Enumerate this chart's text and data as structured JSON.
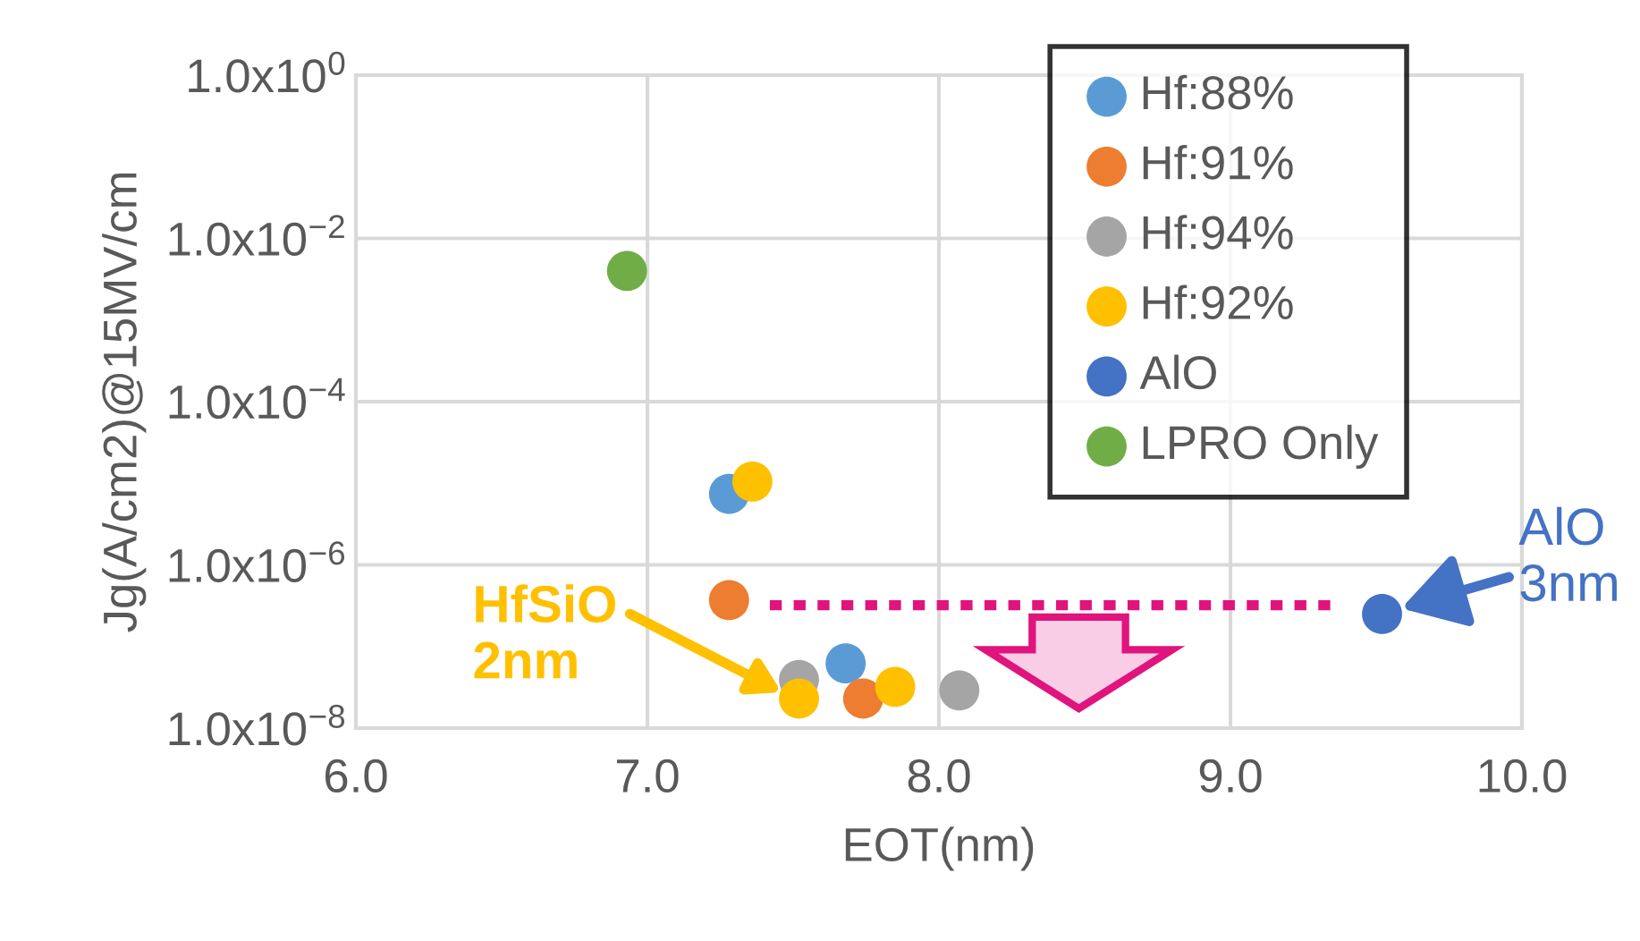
{
  "chart_data": {
    "type": "scatter",
    "xlabel": "EOT(nm)",
    "ylabel": "Jg(A/cm2)@15MV/cm",
    "log": "y",
    "xlim": [
      6.0,
      10.0
    ],
    "xticks": [
      {
        "value": 6,
        "label": "6.0"
      },
      {
        "value": 7,
        "label": "7.0"
      },
      {
        "value": 8,
        "label": "8.0"
      },
      {
        "value": 9,
        "label": "9.0"
      },
      {
        "value": 10,
        "label": "10.0"
      }
    ],
    "ylim": [
      1e-08,
      1
    ],
    "yticks": [
      {
        "value": 1,
        "label": "1.0x10$^{0}$"
      },
      {
        "value": 0.01,
        "label": "1.0x10$^{−2}$"
      },
      {
        "value": 0.0001,
        "label": "1.0x10$^{−4}$"
      },
      {
        "value": 1e-06,
        "label": "1.0x10$^{−6}$"
      },
      {
        "value": 1e-08,
        "label": "1.0x10$^{−8}$"
      }
    ],
    "grid": true,
    "legend": "top right",
    "marker": "circle",
    "series": [
      {
        "name": "Hf:88%",
        "color": "#5b9bd5",
        "x": [
          7.28,
          7.68
        ],
        "values": [
          7.4e-06,
          6.2e-08
        ]
      },
      {
        "name": "Hf:91%",
        "color": "#ed7d31",
        "x": [
          7.28,
          7.74
        ],
        "values": [
          3.7e-07,
          2.3e-08
        ]
      },
      {
        "name": "Hf:94%",
        "color": "#a5a5a5",
        "x": [
          7.52,
          8.07
        ],
        "values": [
          3.9e-08,
          2.9e-08
        ]
      },
      {
        "name": "Hf:92%",
        "color": "#ffc000",
        "x": [
          7.36,
          7.52,
          7.85
        ],
        "values": [
          1.05e-05,
          2.3e-08,
          3.2e-08
        ]
      },
      {
        "name": "AlO",
        "color": "#4472c4",
        "x": [
          9.52
        ],
        "values": [
          2.5e-07
        ]
      },
      {
        "name": "LPRO Only",
        "color": "#70ad47",
        "x": [
          6.93
        ],
        "values": [
          0.004
        ]
      },
      {
        "type": "line",
        "color": "#e0147c",
        "line_style": "dotted",
        "marker": "none",
        "x": [
          7.42,
          9.35
        ],
        "values": [
          3.2e-07,
          3.2e-07
        ]
      }
    ],
    "annotations": [
      "HfSiO\n2nm",
      {
        "text": "AlO\n3nm",
        "x": 9.52,
        "y": 2.5e-07
      }
    ]
  }
}
